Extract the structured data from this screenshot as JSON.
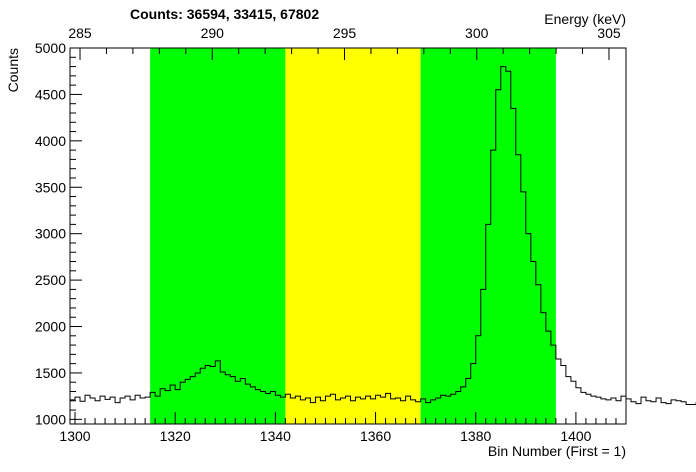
{
  "chart_data": {
    "type": "histogram",
    "title": "Counts:   36594,   33415,   67802",
    "xlabel": "Bin Number (First = 1)",
    "ylabel": "Counts",
    "x2label": "Energy (keV)",
    "xlim": [
      1299,
      1410
    ],
    "ylim": [
      950,
      5000
    ],
    "x_ticks": [
      1300,
      1320,
      1340,
      1360,
      1380,
      1400
    ],
    "y_ticks": [
      1000,
      1500,
      2000,
      2500,
      3000,
      3500,
      4000,
      4500,
      5000
    ],
    "x2_ticks": [
      {
        "label": "285",
        "bin": 1301.0
      },
      {
        "label": "290",
        "bin": 1327.4
      },
      {
        "label": "295",
        "bin": 1353.8
      },
      {
        "label": "300",
        "bin": 1380.2
      },
      {
        "label": "305",
        "bin": 1406.6
      }
    ],
    "regions": [
      {
        "x0": 1315,
        "x1": 1342,
        "color": "#00ff00"
      },
      {
        "x0": 1342,
        "x1": 1369,
        "color": "#ffff00"
      },
      {
        "x0": 1369,
        "x1": 1396,
        "color": "#00ff00"
      }
    ],
    "counts": [
      36594,
      33415,
      67802
    ],
    "histogram": {
      "start": 1299,
      "width": 1,
      "values": [
        1210,
        1240,
        1195,
        1260,
        1230,
        1200,
        1250,
        1215,
        1240,
        1180,
        1230,
        1250,
        1210,
        1260,
        1230,
        1240,
        1290,
        1250,
        1330,
        1310,
        1370,
        1320,
        1400,
        1430,
        1460,
        1500,
        1550,
        1580,
        1570,
        1630,
        1510,
        1480,
        1460,
        1410,
        1440,
        1380,
        1350,
        1320,
        1300,
        1280,
        1300,
        1260,
        1240,
        1270,
        1230,
        1250,
        1210,
        1230,
        1180,
        1240,
        1200,
        1250,
        1270,
        1210,
        1230,
        1250,
        1200,
        1240,
        1220,
        1250,
        1220,
        1260,
        1240,
        1280,
        1220,
        1230,
        1200,
        1250,
        1210,
        1190,
        1220,
        1180,
        1210,
        1230,
        1260,
        1250,
        1270,
        1300,
        1350,
        1440,
        1600,
        1900,
        2400,
        3100,
        3900,
        4550,
        4800,
        4750,
        4350,
        3850,
        3450,
        3000,
        2700,
        2450,
        2150,
        1950,
        1800,
        1650,
        1580,
        1460,
        1410,
        1340,
        1290,
        1270,
        1250,
        1240,
        1220,
        1210,
        1230,
        1200,
        1250,
        1220,
        1190,
        1170,
        1240,
        1200,
        1190,
        1230,
        1180,
        1170,
        1210,
        1200,
        1190,
        1160,
        1160,
        1180,
        1170,
        1190,
        1160,
        1220,
        1180
      ]
    }
  }
}
